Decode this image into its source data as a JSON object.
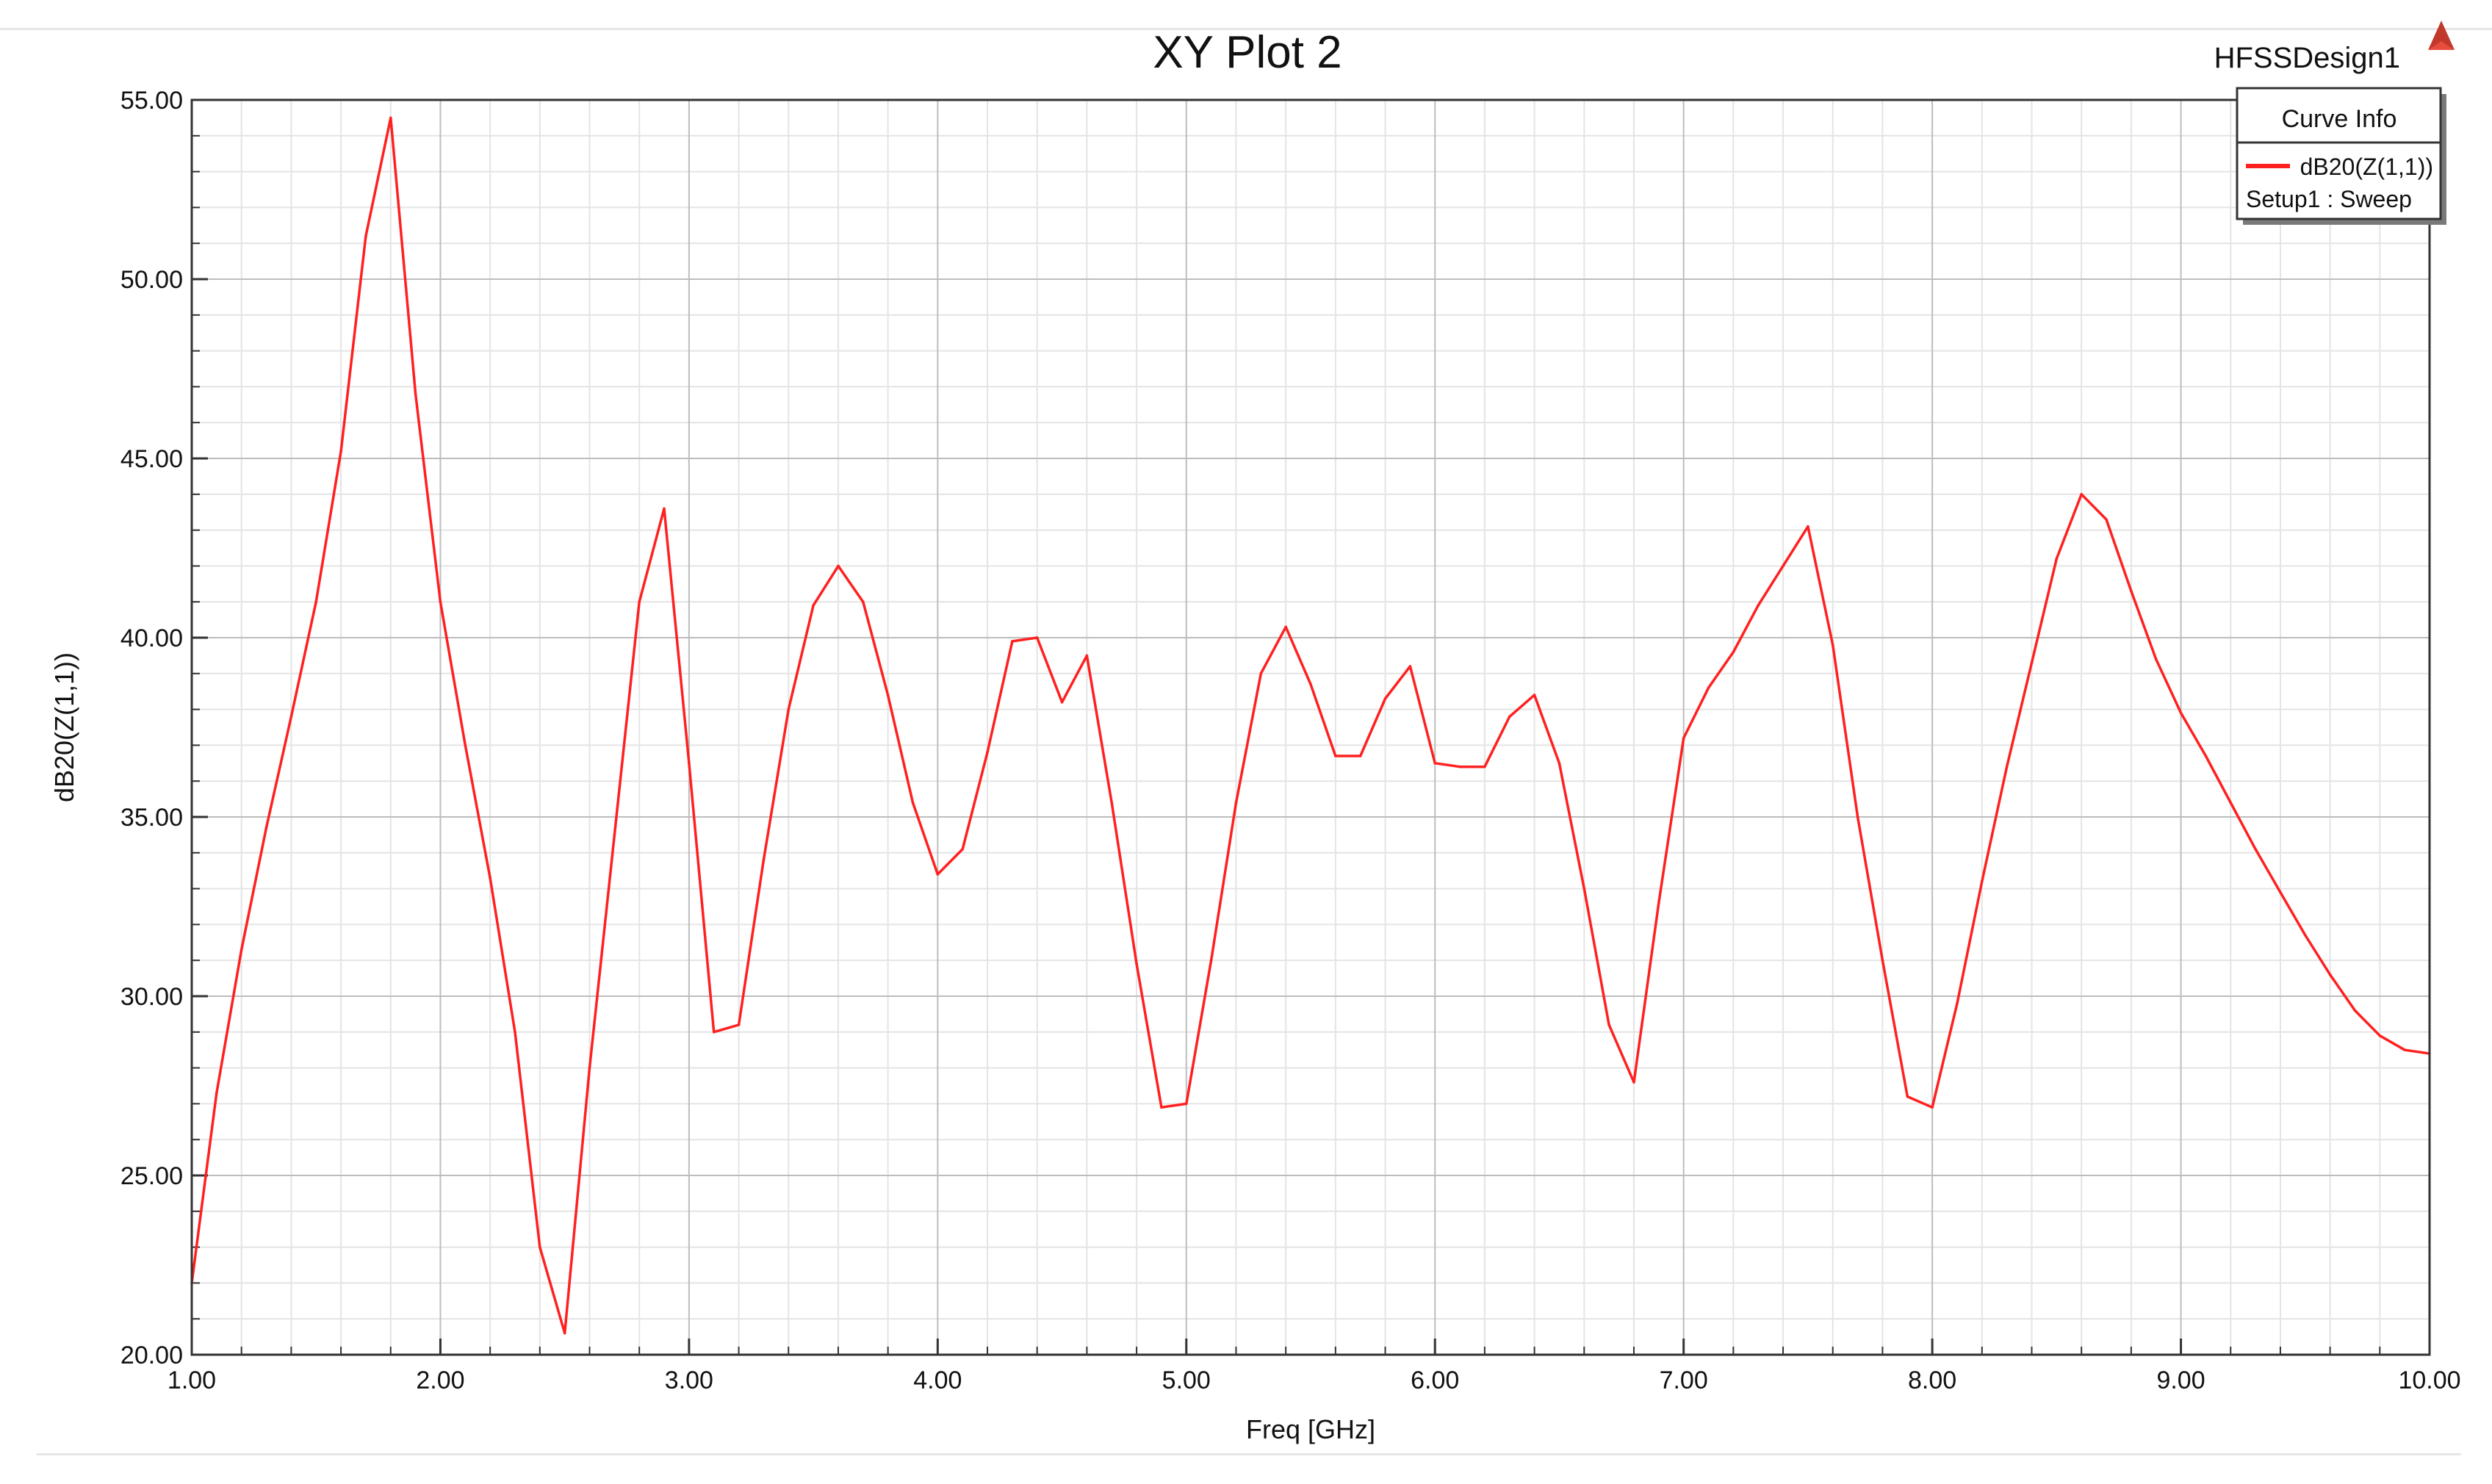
{
  "app": {
    "design_name": "HFSSDesign1",
    "logo_icon": "ansys-logo-icon"
  },
  "chart_data": {
    "type": "line",
    "title": "XY Plot 2",
    "xlabel": "Freq [GHz]",
    "ylabel": "dB20(Z(1,1))",
    "xlim": [
      1.0,
      10.0
    ],
    "ylim": [
      20.0,
      55.0
    ],
    "x_ticks": [
      "1.00",
      "2.00",
      "3.00",
      "4.00",
      "5.00",
      "6.00",
      "7.00",
      "8.00",
      "9.00",
      "10.00"
    ],
    "y_ticks": [
      "20.00",
      "25.00",
      "30.00",
      "35.00",
      "40.00",
      "45.00",
      "50.00",
      "55.00"
    ],
    "grid": true,
    "legend": {
      "title": "Curve Info",
      "placement": "top-right",
      "entries": [
        {
          "name": "dB20(Z(1,1))",
          "subtitle": "Setup1 : Sweep",
          "color": "#ff2020"
        }
      ]
    },
    "series": [
      {
        "name": "dB20(Z(1,1))",
        "color": "#ff2020",
        "x": [
          1.0,
          1.1,
          1.2,
          1.3,
          1.4,
          1.5,
          1.6,
          1.7,
          1.8,
          1.9,
          2.0,
          2.1,
          2.2,
          2.3,
          2.4,
          2.5,
          2.6,
          2.7,
          2.8,
          2.9,
          3.0,
          3.1,
          3.2,
          3.3,
          3.4,
          3.5,
          3.6,
          3.7,
          3.8,
          3.9,
          4.0,
          4.1,
          4.2,
          4.3,
          4.4,
          4.5,
          4.6,
          4.7,
          4.8,
          4.9,
          5.0,
          5.1,
          5.2,
          5.3,
          5.4,
          5.5,
          5.6,
          5.7,
          5.8,
          5.9,
          6.0,
          6.1,
          6.2,
          6.3,
          6.4,
          6.5,
          6.6,
          6.7,
          6.8,
          6.9,
          7.0,
          7.1,
          7.2,
          7.3,
          7.4,
          7.5,
          7.6,
          7.7,
          7.8,
          7.9,
          8.0,
          8.1,
          8.2,
          8.3,
          8.4,
          8.5,
          8.6,
          8.7,
          8.8,
          8.9,
          9.0,
          9.1,
          9.2,
          9.3,
          9.4,
          9.5,
          9.6,
          9.7,
          9.8,
          9.9,
          10.0
        ],
        "y": [
          22.0,
          27.3,
          31.3,
          34.7,
          37.8,
          41.0,
          45.2,
          51.2,
          54.5,
          46.8,
          41.0,
          37.0,
          33.3,
          29.0,
          23.0,
          20.6,
          28.0,
          34.5,
          41.0,
          43.6,
          36.5,
          29.0,
          29.2,
          33.8,
          38.0,
          40.9,
          42.0,
          41.0,
          38.4,
          35.4,
          33.4,
          34.1,
          36.8,
          39.9,
          40.0,
          38.2,
          39.5,
          35.4,
          30.9,
          26.9,
          27.0,
          31.0,
          35.4,
          39.0,
          40.3,
          38.7,
          36.7,
          36.7,
          38.3,
          39.2,
          36.5,
          36.4,
          36.4,
          37.8,
          38.4,
          36.5,
          33.0,
          29.2,
          27.6,
          32.6,
          37.2,
          38.6,
          39.6,
          40.9,
          42.0,
          43.1,
          39.8,
          35.0,
          31.0,
          27.2,
          26.9,
          29.8,
          33.2,
          36.4,
          39.3,
          42.2,
          44.0,
          43.3,
          41.3,
          39.4,
          37.9,
          36.7,
          35.4,
          34.1,
          32.9,
          31.7,
          30.6,
          29.6,
          28.9,
          28.5,
          28.4
        ]
      }
    ]
  }
}
